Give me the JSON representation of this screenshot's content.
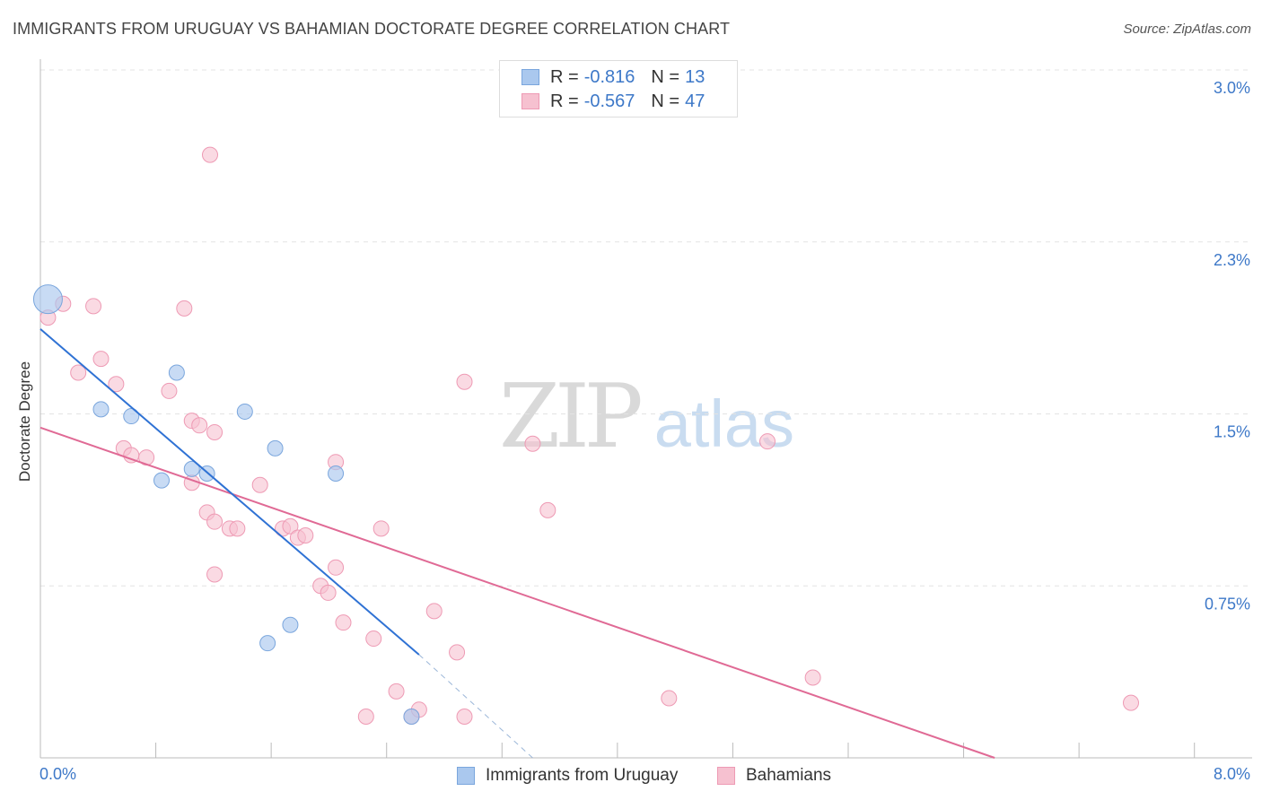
{
  "title": "IMMIGRANTS FROM URUGUAY VS BAHAMIAN DOCTORATE DEGREE CORRELATION CHART",
  "source": "Source: ZipAtlas.com",
  "watermark": {
    "zip": "ZIP",
    "atlas": "atlas"
  },
  "legend_stats": [
    {
      "r_label": "R =",
      "r_value": "-0.816",
      "n_label": "N =",
      "n_value": "13",
      "color": "#aac8ee",
      "border": "#7aa6dd"
    },
    {
      "r_label": "R =",
      "r_value": "-0.567",
      "n_label": "N =",
      "n_value": "47",
      "color": "#f6c1d0",
      "border": "#ee9ab4"
    }
  ],
  "colors": {
    "blue_point": "#aac8ee",
    "blue_stroke": "#7aa6dd",
    "blue_line": "#2f72d4",
    "pink_point": "#f6c1d0",
    "pink_stroke": "#ee9ab4",
    "pink_line": "#e06a95",
    "tick_label": "#3d78c8",
    "grid": "#e3e3e3"
  },
  "chart_data": {
    "type": "scatter",
    "title": "IMMIGRANTS FROM URUGUAY VS BAHAMIAN DOCTORATE DEGREE CORRELATION CHART",
    "xlabel": "",
    "ylabel": "Doctorate Degree",
    "xlim": [
      0,
      8.0
    ],
    "ylim": [
      0,
      3.0
    ],
    "x_tick_labels": [
      "0.0%",
      "8.0%"
    ],
    "y_ticks": [
      0.75,
      1.5,
      2.25,
      3.0
    ],
    "y_tick_labels": [
      "0.75%",
      "1.5%",
      "2.3%",
      "3.0%"
    ],
    "grid": "horizontal dashed",
    "legend_position": "bottom",
    "series": [
      {
        "name": "Immigrants from Uruguay",
        "points": [
          [
            0.05,
            2.0
          ],
          [
            0.4,
            1.52
          ],
          [
            0.6,
            1.49
          ],
          [
            0.9,
            1.68
          ],
          [
            0.8,
            1.21
          ],
          [
            1.35,
            1.51
          ],
          [
            1.0,
            1.26
          ],
          [
            1.1,
            1.24
          ],
          [
            1.55,
            1.35
          ],
          [
            1.95,
            1.24
          ],
          [
            1.65,
            0.58
          ],
          [
            1.5,
            0.5
          ],
          [
            2.45,
            0.18
          ]
        ],
        "trend": {
          "x": [
            0.0,
            2.5
          ],
          "y": [
            1.87,
            0.45
          ]
        },
        "trend_dashed": {
          "x": [
            2.5,
            3.25
          ],
          "y": [
            0.45,
            0.0
          ]
        }
      },
      {
        "name": "Bahamians",
        "points": [
          [
            0.05,
            1.92
          ],
          [
            0.15,
            1.98
          ],
          [
            0.35,
            1.97
          ],
          [
            0.25,
            1.68
          ],
          [
            0.4,
            1.74
          ],
          [
            0.5,
            1.63
          ],
          [
            0.55,
            1.35
          ],
          [
            0.6,
            1.32
          ],
          [
            0.7,
            1.31
          ],
          [
            0.85,
            1.6
          ],
          [
            0.95,
            1.96
          ],
          [
            1.0,
            1.47
          ],
          [
            1.05,
            1.45
          ],
          [
            1.15,
            1.42
          ],
          [
            1.0,
            1.2
          ],
          [
            1.1,
            1.07
          ],
          [
            1.15,
            1.03
          ],
          [
            1.25,
            1.0
          ],
          [
            1.3,
            1.0
          ],
          [
            1.15,
            0.8
          ],
          [
            1.45,
            1.19
          ],
          [
            1.6,
            1.0
          ],
          [
            1.65,
            1.01
          ],
          [
            1.7,
            0.96
          ],
          [
            1.75,
            0.97
          ],
          [
            1.85,
            0.75
          ],
          [
            1.9,
            0.72
          ],
          [
            1.95,
            1.29
          ],
          [
            1.95,
            0.83
          ],
          [
            2.0,
            0.59
          ],
          [
            2.2,
            0.52
          ],
          [
            2.25,
            1.0
          ],
          [
            2.15,
            0.18
          ],
          [
            2.35,
            0.29
          ],
          [
            2.45,
            0.18
          ],
          [
            2.6,
            0.64
          ],
          [
            2.5,
            0.21
          ],
          [
            2.75,
            0.46
          ],
          [
            2.8,
            0.18
          ],
          [
            2.8,
            1.64
          ],
          [
            3.25,
            1.37
          ],
          [
            3.35,
            1.08
          ],
          [
            1.12,
            2.63
          ],
          [
            4.15,
            0.26
          ],
          [
            4.8,
            1.38
          ],
          [
            5.1,
            0.35
          ],
          [
            7.2,
            0.24
          ]
        ],
        "trend": {
          "x": [
            0.0,
            6.3
          ],
          "y": [
            1.44,
            0.0
          ]
        }
      }
    ]
  }
}
